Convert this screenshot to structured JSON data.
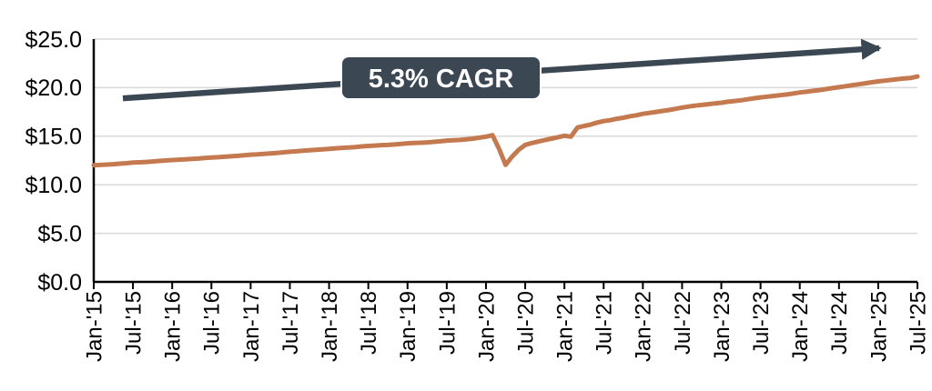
{
  "figure": {
    "background": "#FFFFFF",
    "axis_color": "#000000",
    "gridline_color": "#D9D9D9"
  },
  "chart_data": {
    "type": "line",
    "title": "",
    "xlabel": "",
    "ylabel": "",
    "ylim": [
      0,
      25
    ],
    "grid": "horizontal",
    "legend": "none",
    "y_ticks": [
      0,
      5,
      10,
      15,
      20,
      25
    ],
    "y_tick_labels": [
      "$0.0",
      "$5.0",
      "$10.0",
      "$15.0",
      "$20.0",
      "$25.0"
    ],
    "x_tick_labels": [
      "Jan-'15",
      "Jul-'15",
      "Jan-'16",
      "Jul-'16",
      "Jan-'17",
      "Jul-'17",
      "Jan-'18",
      "Jul-'18",
      "Jan-'19",
      "Jul-'19",
      "Jan-'20",
      "Jul-'20",
      "Jan-'21",
      "Jul-'21",
      "Jan-'22",
      "Jul-'22",
      "Jan-'23",
      "Jul-'23",
      "Jan-'24",
      "Jul-'24",
      "Jan-'25",
      "Jul-'25"
    ],
    "series": [
      {
        "name": "monthly-value-usd",
        "color": "#C4794F",
        "start": "Jan-'15",
        "end": "Jul-'25",
        "frequency": "monthly",
        "values": [
          12.0,
          12.04,
          12.08,
          12.12,
          12.17,
          12.22,
          12.28,
          12.31,
          12.35,
          12.4,
          12.45,
          12.5,
          12.55,
          12.58,
          12.62,
          12.66,
          12.7,
          12.75,
          12.8,
          12.84,
          12.88,
          12.93,
          12.98,
          13.04,
          13.1,
          13.13,
          13.17,
          13.22,
          13.28,
          13.34,
          13.4,
          13.45,
          13.5,
          13.55,
          13.6,
          13.65,
          13.7,
          13.75,
          13.8,
          13.84,
          13.89,
          13.95,
          14.0,
          14.04,
          14.08,
          14.1,
          14.15,
          14.2,
          14.27,
          14.3,
          14.33,
          14.36,
          14.42,
          14.48,
          14.55,
          14.58,
          14.62,
          14.68,
          14.75,
          14.85,
          14.95,
          15.1,
          13.7,
          12.05,
          12.9,
          13.6,
          14.1,
          14.3,
          14.45,
          14.6,
          14.75,
          14.9,
          15.05,
          14.95,
          15.9,
          16.05,
          16.2,
          16.4,
          16.55,
          16.65,
          16.8,
          16.9,
          17.05,
          17.15,
          17.3,
          17.4,
          17.5,
          17.6,
          17.7,
          17.82,
          17.95,
          18.05,
          18.15,
          18.22,
          18.3,
          18.38,
          18.45,
          18.55,
          18.62,
          18.7,
          18.8,
          18.9,
          19.0,
          19.07,
          19.15,
          19.22,
          19.3,
          19.4,
          19.5,
          19.58,
          19.67,
          19.75,
          19.85,
          19.95,
          20.05,
          20.15,
          20.25,
          20.35,
          20.45,
          20.55,
          20.65,
          20.72,
          20.8,
          20.88,
          20.95,
          21.0,
          21.15
        ]
      }
    ],
    "annotation": {
      "label": "5.3% CAGR",
      "box_color": "#3B4753",
      "text_color": "#FFFFFF",
      "border_color": "#FFFFFF"
    },
    "trend_arrow": {
      "start_value": 18.9,
      "end_value": 24.2,
      "color": "#3B4753"
    }
  }
}
